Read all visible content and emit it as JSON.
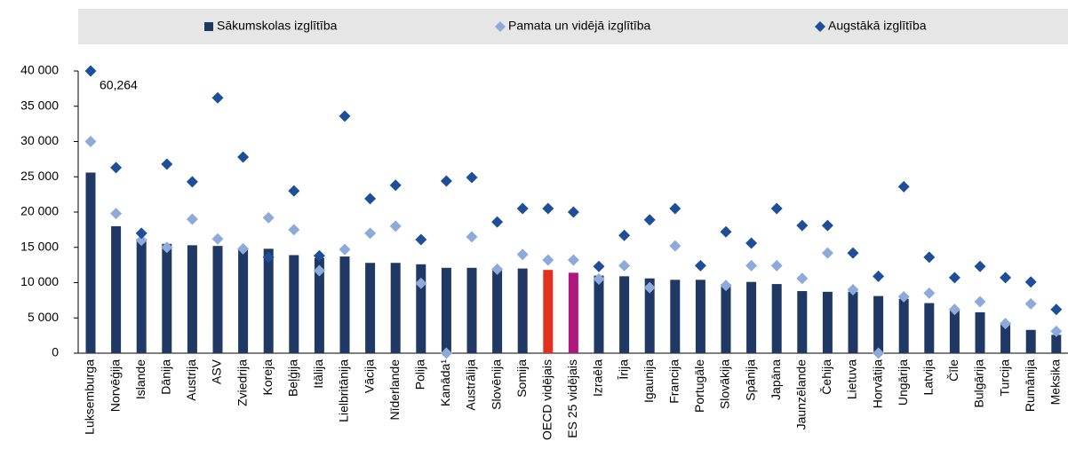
{
  "chart_data": {
    "type": "bar",
    "categories": [
      "Luksemburga",
      "Norvēģija",
      "Islande",
      "Dānija",
      "Austrija",
      "ASV",
      "Zviedrija",
      "Koreja",
      "Beļģija",
      "Itālija",
      "Lielbritānija",
      "Vācija",
      "Nīderlande",
      "Polija",
      "Kanāda¹",
      "Austrālija",
      "Slovēnija",
      "Somija",
      "OECD vidējais",
      "ES 25 vidējais",
      "Izraēla",
      "Īrija",
      "Igaunija",
      "Francija",
      "Portugāle",
      "Slovākija",
      "Spānija",
      "Japāna",
      "Jaunzēlande",
      "Čehija",
      "Lietuva",
      "Horvātija",
      "Ungārija",
      "Latvija",
      "Čīle",
      "Bulgārija",
      "Turcija",
      "Rumānija",
      "Meksika"
    ],
    "series": [
      {
        "name": "Sākumskolas izglītība",
        "kind": "bar",
        "color": "#1f3864",
        "point_colors": [
          "#1f3864",
          "#1f3864",
          "#1f3864",
          "#1f3864",
          "#1f3864",
          "#1f3864",
          "#1f3864",
          "#1f3864",
          "#1f3864",
          "#1f3864",
          "#1f3864",
          "#1f3864",
          "#1f3864",
          "#1f3864",
          "#1f3864",
          "#1f3864",
          "#1f3864",
          "#1f3864",
          "#e0301e",
          "#b0177e",
          "#1f3864",
          "#1f3864",
          "#1f3864",
          "#1f3864",
          "#1f3864",
          "#1f3864",
          "#1f3864",
          "#1f3864",
          "#1f3864",
          "#1f3864",
          "#1f3864",
          "#1f3864",
          "#1f3864",
          "#1f3864",
          "#1f3864",
          "#1f3864",
          "#1f3864",
          "#1f3864",
          "#1f3864"
        ],
        "values": [
          25600,
          18000,
          16200,
          15500,
          15300,
          15200,
          14800,
          14800,
          13900,
          13500,
          13700,
          12800,
          12800,
          12600,
          12100,
          12100,
          11900,
          12000,
          11800,
          11400,
          11000,
          10900,
          10600,
          10400,
          10400,
          9800,
          10100,
          9800,
          8800,
          8700,
          8700,
          8100,
          7700,
          7100,
          6100,
          5800,
          4100,
          3300,
          2600
        ]
      },
      {
        "name": "Pamata un vidējā izglītība",
        "kind": "diamond",
        "color": "#8eaadb",
        "values": [
          30000,
          19800,
          16000,
          15000,
          19000,
          16200,
          14800,
          19200,
          17500,
          11700,
          14700,
          17000,
          18000,
          9900,
          0,
          16500,
          11900,
          14000,
          13200,
          13200,
          10500,
          12400,
          9300,
          15200,
          null,
          9600,
          12400,
          12400,
          10600,
          14200,
          9000,
          0,
          8000,
          8500,
          6200,
          7300,
          4200,
          7000,
          3100
        ]
      },
      {
        "name": "Augstākā izglītība",
        "kind": "diamond",
        "color": "#1f4e99",
        "values": [
          60264,
          26300,
          17000,
          26800,
          24300,
          36200,
          27800,
          13600,
          23000,
          13800,
          33600,
          21900,
          23800,
          16100,
          24400,
          24900,
          18600,
          20500,
          20500,
          20000,
          12300,
          16700,
          18900,
          20500,
          12400,
          17200,
          15600,
          20500,
          18100,
          18100,
          14200,
          10900,
          23600,
          13600,
          10700,
          12300,
          10700,
          10100,
          6200
        ],
        "value_labels": [
          "60,264",
          null,
          null,
          null,
          null,
          null,
          null,
          null,
          null,
          null,
          null,
          null,
          null,
          null,
          null,
          null,
          null,
          null,
          null,
          null,
          null,
          null,
          null,
          null,
          null,
          null,
          null,
          null,
          null,
          null,
          null,
          null,
          null,
          null,
          null,
          null,
          null,
          null,
          null
        ]
      }
    ],
    "ylim": [
      0,
      40000
    ],
    "yticks": [
      0,
      {
        "value": 5000,
        "label": "5 000"
      },
      {
        "value": 10000,
        "label": "10 000"
      },
      {
        "value": 15000,
        "label": "15 000"
      },
      {
        "value": 20000,
        "label": "20 000"
      },
      {
        "value": 25000,
        "label": "25 000"
      },
      {
        "value": 30000,
        "label": "30 000"
      },
      {
        "value": 35000,
        "label": "35 000"
      },
      {
        "value": 40000,
        "label": "40 000"
      }
    ],
    "legend": "top"
  }
}
